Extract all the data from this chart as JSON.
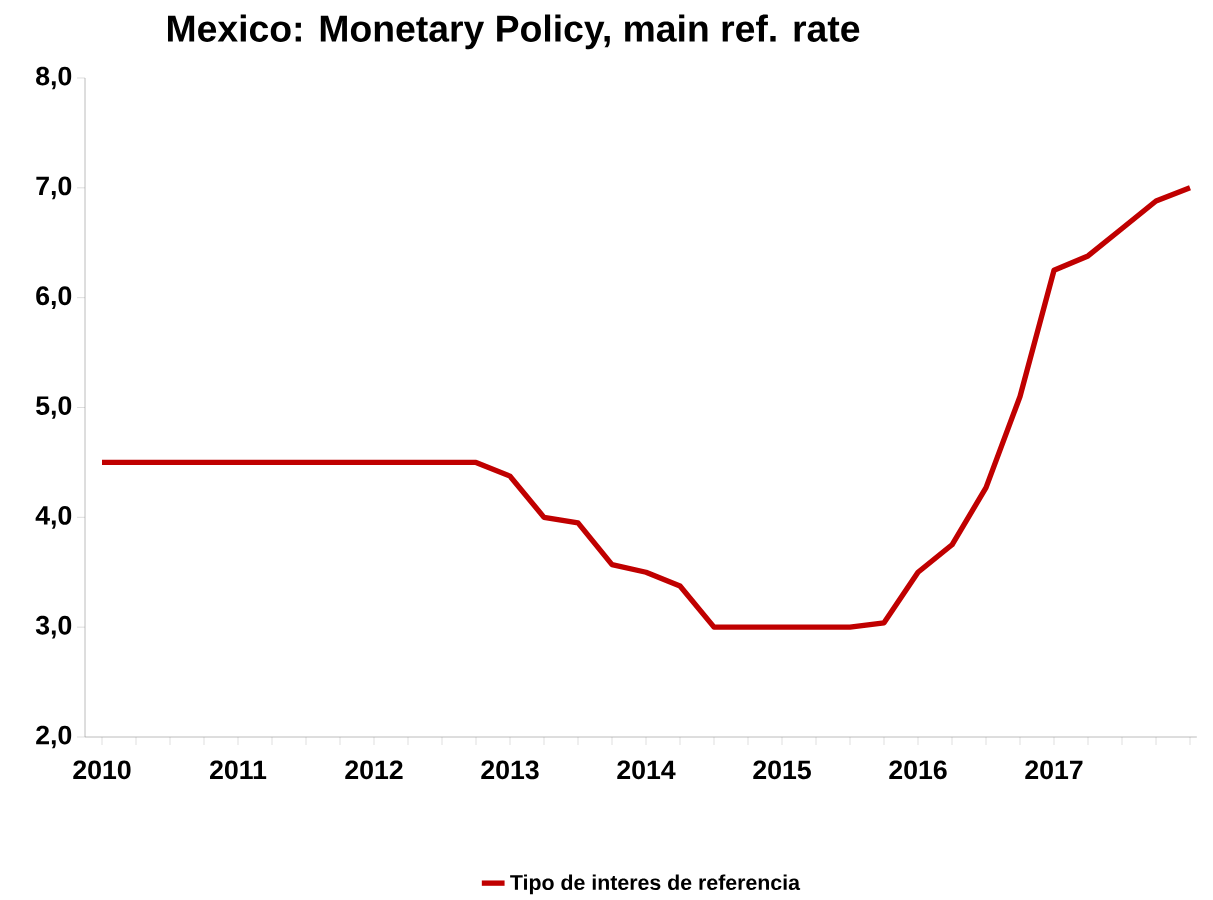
{
  "chart_data": {
    "type": "line",
    "title": "Mexico: Monetary Policy, main ref. rate",
    "categories": [
      "2010",
      null,
      null,
      null,
      "2011",
      null,
      null,
      null,
      "2012",
      null,
      null,
      null,
      "2013",
      null,
      null,
      null,
      "2014",
      null,
      null,
      null,
      "2015",
      null,
      null,
      null,
      "2016",
      null,
      null,
      null,
      "2017",
      null,
      null,
      null,
      null
    ],
    "series": [
      {
        "name": "Tipo de interes de referencia",
        "color": "#c00000",
        "values": [
          4.5,
          4.5,
          4.5,
          4.5,
          4.5,
          4.5,
          4.5,
          4.5,
          4.5,
          4.5,
          4.5,
          4.5,
          4.375,
          4.0,
          3.95,
          3.57,
          3.5,
          3.375,
          3.0,
          3.0,
          3.0,
          3.0,
          3.0,
          3.04,
          3.5,
          3.75,
          4.27,
          5.1,
          6.25,
          6.38,
          6.63,
          6.88,
          7.0
        ]
      }
    ],
    "ylim": [
      2,
      8
    ],
    "yticks": [
      {
        "value": 2,
        "label": "2,0"
      },
      {
        "value": 3,
        "label": "3,0"
      },
      {
        "value": 4,
        "label": "4,0"
      },
      {
        "value": 5,
        "label": "5,0"
      },
      {
        "value": 6,
        "label": "6,0"
      },
      {
        "value": 7,
        "label": "7,0"
      },
      {
        "value": 8,
        "label": "8,0"
      }
    ],
    "legend": "bottom",
    "grid": false,
    "marker": "none",
    "line_style": "solid"
  }
}
